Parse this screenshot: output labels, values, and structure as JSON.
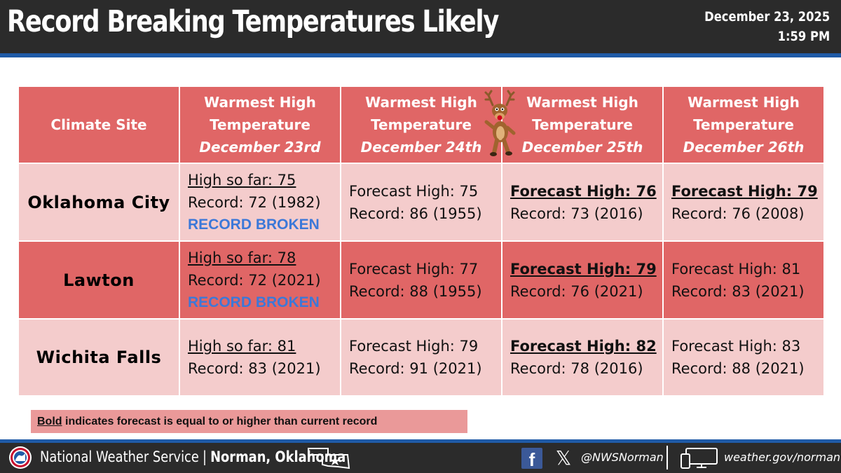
{
  "header": {
    "title": "Record Breaking Temperatures Likely",
    "date": "December 23, 2025",
    "time": "1:59 PM"
  },
  "table": {
    "site_header": "Climate Site",
    "columns": [
      {
        "line1": "Warmest High",
        "line2": "Temperature",
        "date": "December 23rd"
      },
      {
        "line1": "Warmest High",
        "line2": "Temperature",
        "date": "December 24th"
      },
      {
        "line1": "Warmest High",
        "line2": "Temperature",
        "date": "December 25th"
      },
      {
        "line1": "Warmest High",
        "line2": "Temperature",
        "date": "December 26th"
      }
    ],
    "rows": [
      {
        "site": "Oklahoma City",
        "cells": [
          {
            "line1": "High so far: 75",
            "line2": "Record: 72 (1982)",
            "status": "RECORD BROKEN"
          },
          {
            "line1": "Forecast High: 75",
            "line2": "Record: 86 (1955)"
          },
          {
            "line1": "Forecast High: 76",
            "line2": "Record: 73 (2016)"
          },
          {
            "line1": "Forecast High: 79",
            "line2": "Record: 76 (2008)"
          }
        ]
      },
      {
        "site": "Lawton",
        "cells": [
          {
            "line1": "High so far: 78",
            "line2": "Record: 72 (2021)",
            "status": "RECORD BROKEN"
          },
          {
            "line1": "Forecast High: 77",
            "line2": "Record: 88 (1955)"
          },
          {
            "line1": "Forecast High: 79",
            "line2": "Record: 76 (2021)"
          },
          {
            "line1": "Forecast High: 81",
            "line2": "Record: 83 (2021)"
          }
        ]
      },
      {
        "site": "Wichita Falls",
        "cells": [
          {
            "line1": "High so far: 81",
            "line2": "Record: 83 (2021)"
          },
          {
            "line1": "Forecast High: 79",
            "line2": "Record: 91 (2021)"
          },
          {
            "line1": "Forecast High: 82",
            "line2": "Record: 78 (2016)"
          },
          {
            "line1": "Forecast High: 83",
            "line2": "Record: 88 (2021)"
          }
        ]
      }
    ]
  },
  "legend": {
    "bold_word": "Bold",
    "text": " indicates forecast is equal to or higher than current record"
  },
  "footer": {
    "org": "National Weather Service",
    "separator": "|",
    "office": "Norman, Oklahoma",
    "handle": "@NWSNorman",
    "website": "weather.gov/norman",
    "fb_glyph": "f",
    "x_glyph": "𝕏"
  },
  "colors": {
    "header_bg": "#2b2b2b",
    "accent_blue": "#1f5aa6",
    "table_header": "#e06666",
    "row_light": "#f4cccc",
    "row_dark": "#e06666",
    "record_broken": "#3c78d8",
    "legend_bg": "#ea9999"
  },
  "icons": [
    "nws-logo",
    "oklahoma-state-icon",
    "facebook-icon",
    "x-icon",
    "monitor-phone-icon",
    "reindeer-graphic"
  ]
}
